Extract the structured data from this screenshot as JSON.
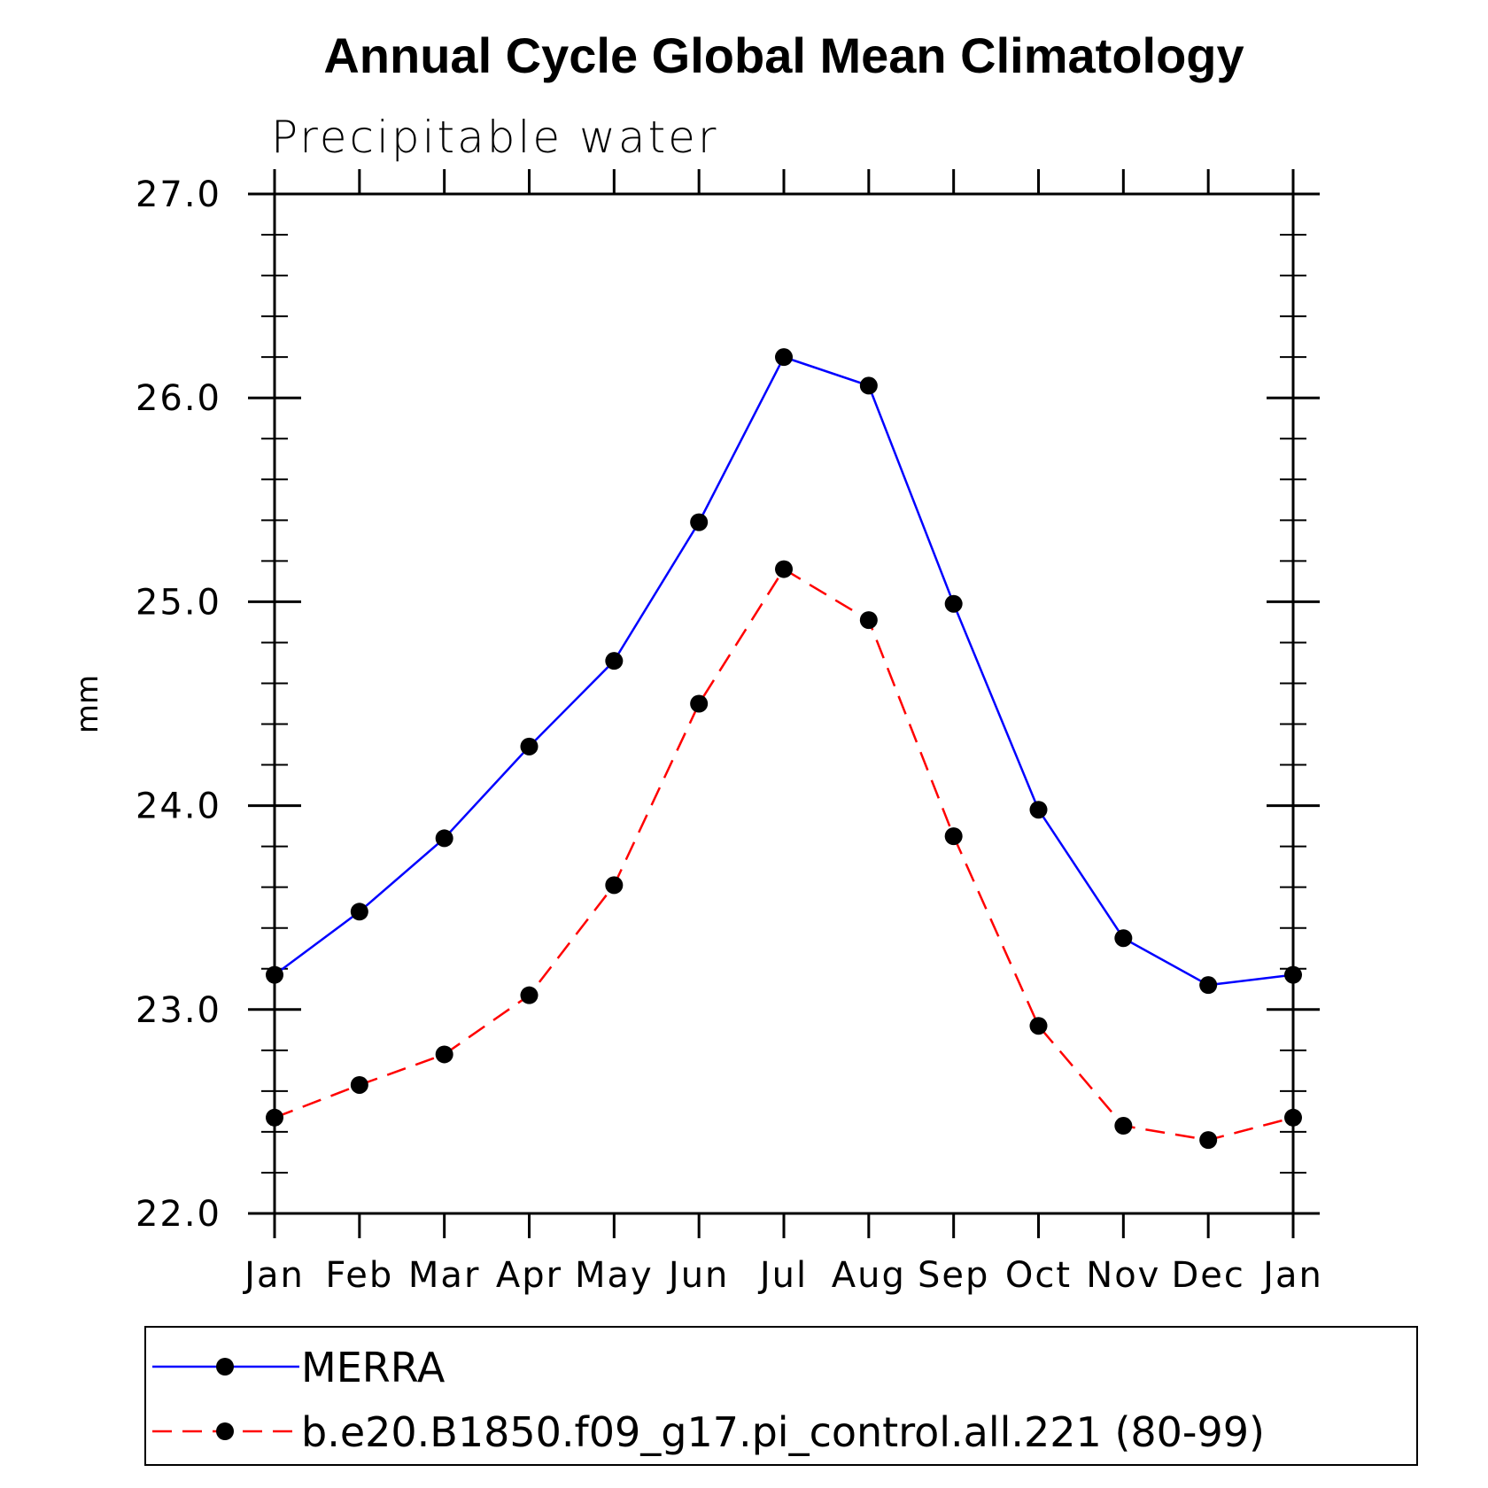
{
  "chart_data": {
    "type": "line",
    "title": "Annual Cycle Global Mean Climatology",
    "subtitle": "Precipitable water",
    "xlabel": "",
    "ylabel": "mm",
    "categories": [
      "Jan",
      "Feb",
      "Mar",
      "Apr",
      "May",
      "Jun",
      "Jul",
      "Aug",
      "Sep",
      "Oct",
      "Nov",
      "Dec",
      "Jan"
    ],
    "ylim": [
      22.0,
      27.0
    ],
    "yticks": [
      "22.0",
      "23.0",
      "24.0",
      "25.0",
      "26.0",
      "27.0"
    ],
    "grid": false,
    "legend_position": "bottom",
    "series": [
      {
        "name": "MERRA",
        "color": "#0000ff",
        "dash": "solid",
        "marker": "filled-circle",
        "values": [
          23.17,
          23.48,
          23.84,
          24.29,
          24.71,
          25.39,
          26.2,
          26.06,
          24.99,
          23.98,
          23.35,
          23.12,
          23.17
        ]
      },
      {
        "name": "b.e20.B1850.f09_g17.pi_control.all.221 (80-99)",
        "color": "#ff0000",
        "dash": "dashed",
        "marker": "filled-circle",
        "values": [
          22.47,
          22.63,
          22.78,
          23.07,
          23.61,
          24.5,
          25.16,
          24.91,
          23.85,
          22.92,
          22.43,
          22.36,
          22.47
        ]
      }
    ]
  }
}
